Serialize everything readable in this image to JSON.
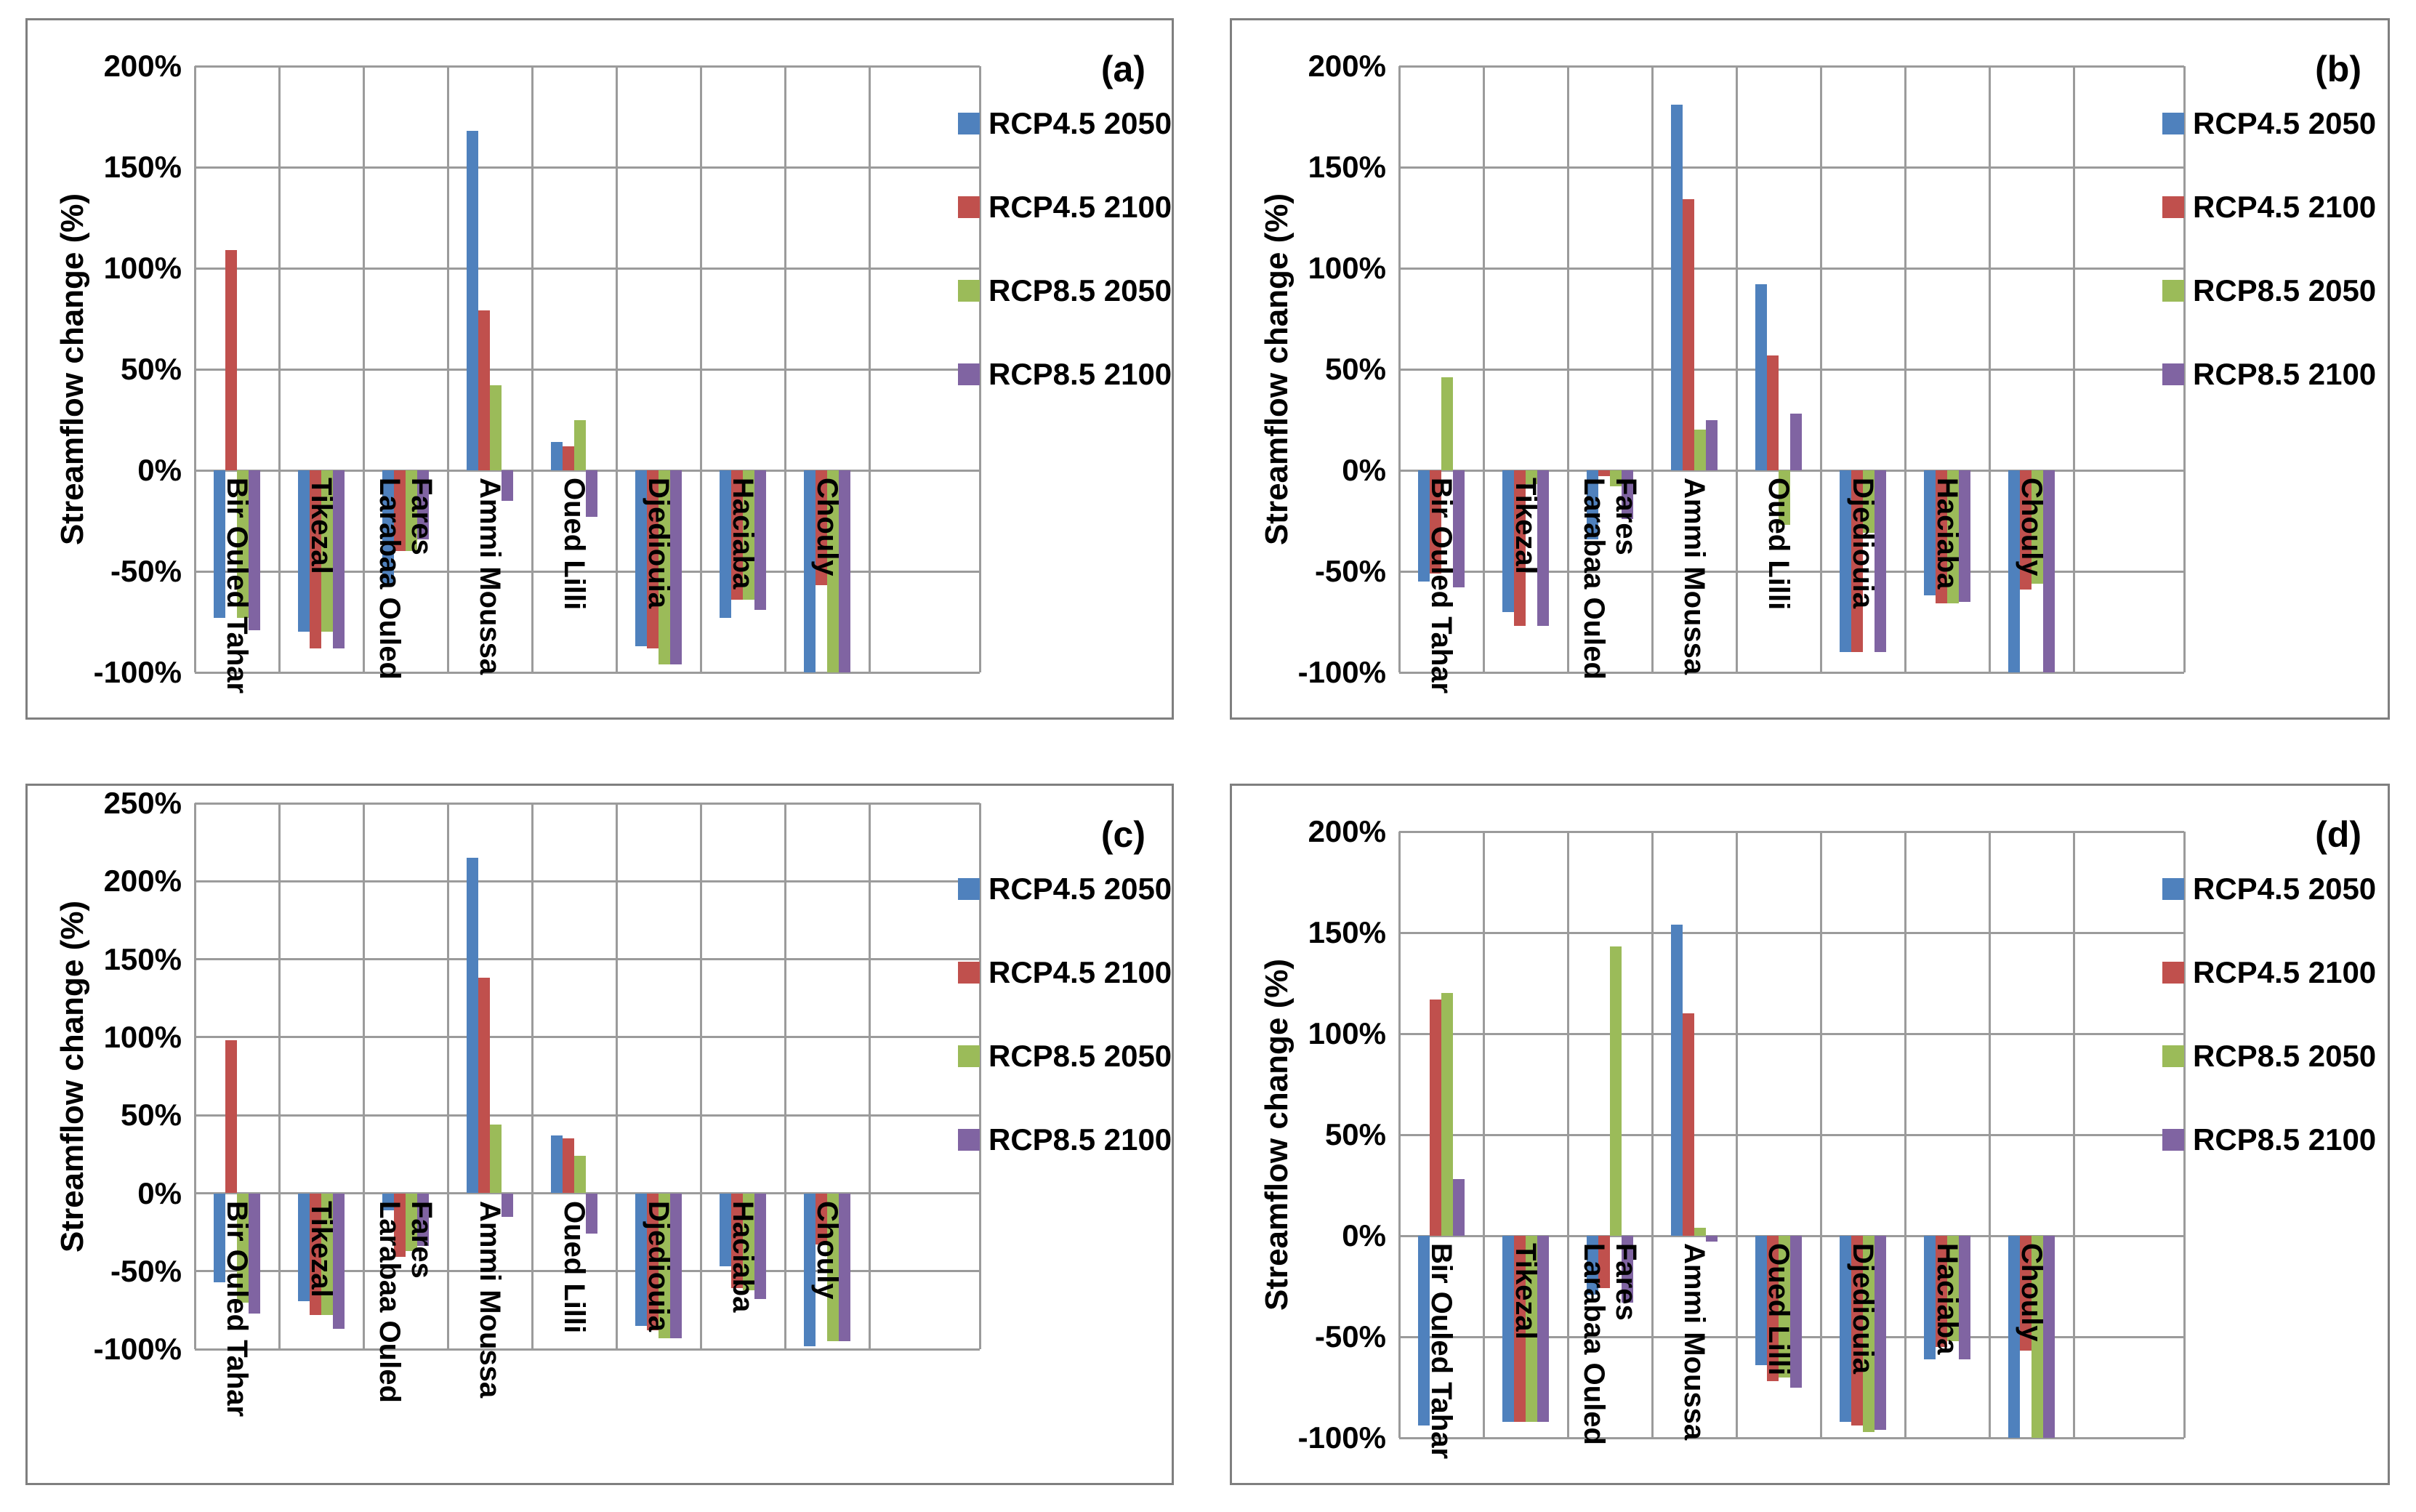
{
  "figure": {
    "bg_color": "#ffffff",
    "grid_color": "#9b9b9b",
    "panel_border_color": "#7f7f7f",
    "text_color": "#000000",
    "panel_letters": [
      "(a)",
      "(b)",
      "(c)",
      "(d)"
    ]
  },
  "chart_data": [
    {
      "type": "bar",
      "panel_label": "(a)",
      "ylabel": "Streamflow change (%)",
      "ylim": [
        -100,
        200
      ],
      "ytick_step": 50,
      "ytick_labels": [
        "200%",
        "150%",
        "100%",
        "50%",
        "0%",
        "-50%",
        "-100%"
      ],
      "grid": true,
      "legend_position": "right",
      "categories": [
        "Bir Ouled Tahar",
        "Tikezal",
        "Larabaa Ouled\nFares",
        "Ammi Moussa",
        "Oued Lilli",
        "Djediouia",
        "Haciaba",
        "Chouly"
      ],
      "series": [
        {
          "name": "RCP4.5 2050",
          "color": "#4F81BD",
          "values": [
            -73,
            -80,
            -56,
            168,
            14,
            -87,
            -73,
            -100
          ]
        },
        {
          "name": "RCP4.5 2100",
          "color": "#C0504D",
          "values": [
            109,
            -88,
            -40,
            79,
            12,
            -88,
            -64,
            -57
          ]
        },
        {
          "name": "RCP8.5 2050",
          "color": "#9BBB59",
          "values": [
            -73,
            -80,
            -40,
            42,
            25,
            -96,
            -64,
            -100
          ]
        },
        {
          "name": "RCP8.5 2100",
          "color": "#8064A2",
          "values": [
            -79,
            -88,
            -34,
            -15,
            -23,
            -96,
            -69,
            -100
          ]
        }
      ]
    },
    {
      "type": "bar",
      "panel_label": "(b)",
      "ylabel": "Streamflow change (%)",
      "ylim": [
        -100,
        200
      ],
      "ytick_step": 50,
      "ytick_labels": [
        "200%",
        "150%",
        "100%",
        "50%",
        "0%",
        "-50%",
        "-100%"
      ],
      "grid": true,
      "legend_position": "right",
      "categories": [
        "Bir Ouled Tahar",
        "Tikezal",
        "Larabaa Ouled\nFares",
        "Ammi Moussa",
        "Oued Lilli",
        "Djediouia",
        "Haciaba",
        "Chouly"
      ],
      "series": [
        {
          "name": "RCP4.5 2050",
          "color": "#4F81BD",
          "values": [
            -55,
            -70,
            -34,
            181,
            92,
            -90,
            -62,
            -100
          ]
        },
        {
          "name": "RCP4.5 2100",
          "color": "#C0504D",
          "values": [
            -51,
            -77,
            -3,
            134,
            57,
            -90,
            -66,
            -59
          ]
        },
        {
          "name": "RCP8.5 2050",
          "color": "#9BBB59",
          "values": [
            46,
            -7,
            -8,
            20,
            -27,
            -31,
            -66,
            -56
          ]
        },
        {
          "name": "RCP8.5 2100",
          "color": "#8064A2",
          "values": [
            -58,
            -77,
            -24,
            25,
            28,
            -90,
            -65,
            -100
          ]
        }
      ]
    },
    {
      "type": "bar",
      "panel_label": "(c)",
      "ylabel": "Streamflow change (%)",
      "ylim": [
        -100,
        250
      ],
      "ytick_step": 50,
      "ytick_labels": [
        "250%",
        "200%",
        "150%",
        "100%",
        "50%",
        "0%",
        "-50%",
        "-100%"
      ],
      "grid": true,
      "legend_position": "right",
      "categories": [
        "Bir Ouled Tahar",
        "Tikezal",
        "Larabaa Ouled\nFares",
        "Ammi Moussa",
        "Oued Lilli",
        "Djediouia",
        "Haciaba",
        "Chouly"
      ],
      "series": [
        {
          "name": "RCP4.5 2050",
          "color": "#4F81BD",
          "values": [
            -57,
            -69,
            -11,
            215,
            37,
            -85,
            -47,
            -98
          ]
        },
        {
          "name": "RCP4.5 2100",
          "color": "#C0504D",
          "values": [
            98,
            -78,
            -41,
            138,
            35,
            -88,
            -61,
            -33
          ]
        },
        {
          "name": "RCP8.5 2050",
          "color": "#9BBB59",
          "values": [
            -70,
            -78,
            -37,
            44,
            24,
            -93,
            -62,
            -95
          ]
        },
        {
          "name": "RCP8.5 2100",
          "color": "#8064A2",
          "values": [
            -77,
            -87,
            -34,
            -15,
            -26,
            -93,
            -68,
            -95
          ]
        }
      ]
    },
    {
      "type": "bar",
      "panel_label": "(d)",
      "ylabel": "Streamflow change (%)",
      "ylim": [
        -100,
        200
      ],
      "ytick_step": 50,
      "ytick_labels": [
        "200%",
        "150%",
        "100%",
        "50%",
        "0%",
        "-50%",
        "-100%"
      ],
      "grid": true,
      "legend_position": "right",
      "categories": [
        "Bir Ouled Tahar",
        "Tikezal",
        "Larabaa Ouled\nFares",
        "Ammi Moussa",
        "Oued Lilli",
        "Djediouia",
        "Haciaba",
        "Chouly"
      ],
      "series": [
        {
          "name": "RCP4.5 2050",
          "color": "#4F81BD",
          "values": [
            -94,
            -92,
            -29,
            154,
            -64,
            -92,
            -61,
            -100
          ]
        },
        {
          "name": "RCP4.5 2100",
          "color": "#C0504D",
          "values": [
            117,
            -92,
            -26,
            110,
            -72,
            -94,
            -55,
            -57
          ]
        },
        {
          "name": "RCP8.5 2050",
          "color": "#9BBB59",
          "values": [
            120,
            -92,
            143,
            4,
            -70,
            -97,
            -52,
            -100
          ]
        },
        {
          "name": "RCP8.5 2100",
          "color": "#8064A2",
          "values": [
            28,
            -92,
            -33,
            -3,
            -75,
            -96,
            -61,
            -100
          ]
        }
      ]
    }
  ]
}
